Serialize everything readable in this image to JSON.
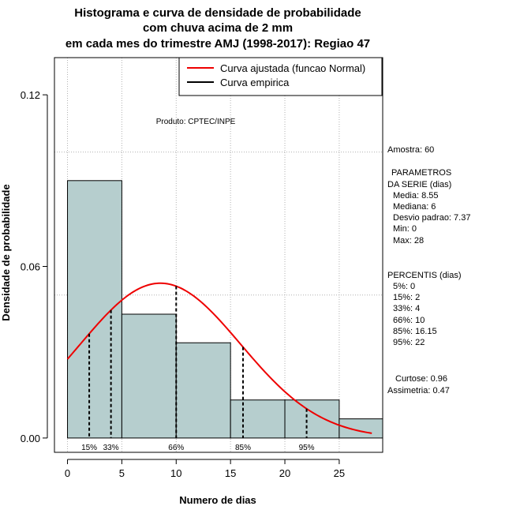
{
  "chart_data": {
    "type": "histogram",
    "title": [
      "Histograma e curva de densidade de probabilidade",
      "com chuva acima de 2 mm",
      "em cada mes do trimestre AMJ (1998-2017): Regiao 47"
    ],
    "xlabel": "Numero de dias",
    "ylabel": "Densidade de probabilidade",
    "xlim": [
      -1.2,
      29
    ],
    "ylim": [
      -0.005,
      0.133
    ],
    "x_ticks": [
      0,
      5,
      10,
      15,
      20,
      25
    ],
    "y_ticks": [
      0.0,
      0.06,
      0.12
    ],
    "y_tick_labels": [
      "0.00",
      "0.06",
      "0.12"
    ],
    "grid_x": [
      0,
      5,
      10,
      15,
      20,
      25
    ],
    "grid_y": [
      0.05,
      0.1
    ],
    "bins": [
      {
        "start": 0,
        "end": 5,
        "density": 0.09
      },
      {
        "start": 5,
        "end": 10,
        "density": 0.0433
      },
      {
        "start": 10,
        "end": 15,
        "density": 0.0333
      },
      {
        "start": 15,
        "end": 20,
        "density": 0.0133
      },
      {
        "start": 20,
        "end": 25,
        "density": 0.0133
      },
      {
        "start": 25,
        "end": 30,
        "density": 0.0067
      }
    ],
    "bar_color": "#b6cece",
    "curve": {
      "name": "Curva ajustada (funcao Normal)",
      "mean": 8.55,
      "sd": 7.37,
      "x_min": 0,
      "x_max": 28,
      "color": "#ee0000"
    },
    "empirical_name": "Curva empirica",
    "percentile_lines": [
      {
        "x": 2,
        "label": "15%"
      },
      {
        "x": 4,
        "label": "33%"
      },
      {
        "x": 10,
        "label": "66%"
      },
      {
        "x": 16.15,
        "label": "85%"
      },
      {
        "x": 22,
        "label": "95%"
      }
    ],
    "product_label": "Produto: CPTEC/INPE",
    "legend_position": "top-right"
  },
  "stats": {
    "amostra": "Amostra: 60",
    "param_header_1": "PARAMETROS",
    "param_header_2": "DA SERIE (dias)",
    "params": [
      "Media: 8.55",
      "Mediana: 6",
      "Desvio padrao: 7.37",
      "Min: 0",
      "Max: 28"
    ],
    "percentis_header": "PERCENTIS (dias)",
    "percentis": [
      "5%: 0",
      "15%: 2",
      "33%: 4",
      "66%: 10",
      "85%: 16.15",
      "95%: 22"
    ],
    "curtose": "Curtose: 0.96",
    "assimetria": "Assimetria: 0.47"
  }
}
